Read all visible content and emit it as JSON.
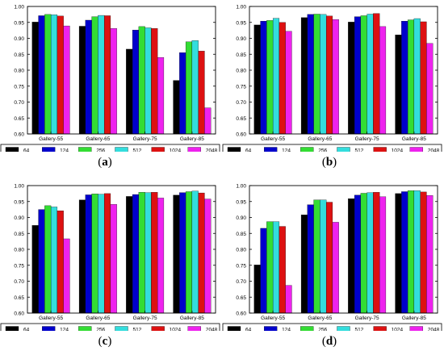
{
  "chart_data": [
    {
      "type": "bar",
      "label": "a",
      "categories": [
        "Gallery-55",
        "Gallery-65",
        "Gallery-75",
        "Gallery-85"
      ],
      "ylim": [
        0.6,
        1.0
      ],
      "yticks": [
        "0.60",
        "0.65",
        "0.70",
        "0.75",
        "0.80",
        "0.85",
        "0.90",
        "0.95",
        "1.00"
      ],
      "legend_position": "bottom",
      "series": [
        {
          "name": "64",
          "color": "#000000",
          "values": [
            0.951,
            0.938,
            0.866,
            0.768
          ]
        },
        {
          "name": "124",
          "color": "#0000cc",
          "values": [
            0.971,
            0.957,
            0.926,
            0.855
          ]
        },
        {
          "name": "256",
          "color": "#33dd33",
          "values": [
            0.975,
            0.968,
            0.937,
            0.889
          ]
        },
        {
          "name": "512",
          "color": "#33dddd",
          "values": [
            0.974,
            0.972,
            0.933,
            0.893
          ]
        },
        {
          "name": "1024",
          "color": "#dd1111",
          "values": [
            0.97,
            0.971,
            0.931,
            0.86
          ]
        },
        {
          "name": "2048",
          "color": "#ee22ee",
          "values": [
            0.939,
            0.931,
            0.84,
            0.682
          ]
        }
      ]
    },
    {
      "type": "bar",
      "label": "b",
      "categories": [
        "Gallery-55",
        "Gallery-65",
        "Gallery-75",
        "Gallery-85"
      ],
      "ylim": [
        0.6,
        1.0
      ],
      "yticks": [
        "0.60",
        "0.65",
        "0.70",
        "0.75",
        "0.80",
        "0.85",
        "0.90",
        "0.95",
        "1.00"
      ],
      "legend_position": "bottom",
      "series": [
        {
          "name": "64",
          "color": "#000000",
          "values": [
            0.942,
            0.965,
            0.951,
            0.911
          ]
        },
        {
          "name": "124",
          "color": "#0000cc",
          "values": [
            0.954,
            0.975,
            0.968,
            0.954
          ]
        },
        {
          "name": "256",
          "color": "#33dd33",
          "values": [
            0.956,
            0.976,
            0.971,
            0.958
          ]
        },
        {
          "name": "512",
          "color": "#33dddd",
          "values": [
            0.963,
            0.975,
            0.976,
            0.962
          ]
        },
        {
          "name": "1024",
          "color": "#dd1111",
          "values": [
            0.95,
            0.97,
            0.978,
            0.952
          ]
        },
        {
          "name": "2048",
          "color": "#ee22ee",
          "values": [
            0.922,
            0.959,
            0.937,
            0.884
          ]
        }
      ]
    },
    {
      "type": "bar",
      "label": "c",
      "categories": [
        "Gallery-55",
        "Gallery-65",
        "Gallery-75",
        "Gallery-85"
      ],
      "ylim": [
        0.6,
        1.0
      ],
      "yticks": [
        "0.60",
        "0.65",
        "0.70",
        "0.75",
        "0.80",
        "0.85",
        "0.90",
        "0.95",
        "1.00"
      ],
      "legend_position": "bottom",
      "series": [
        {
          "name": "64",
          "color": "#000000",
          "values": [
            0.875,
            0.955,
            0.966,
            0.97
          ]
        },
        {
          "name": "124",
          "color": "#0000cc",
          "values": [
            0.925,
            0.971,
            0.972,
            0.978
          ]
        },
        {
          "name": "256",
          "color": "#33dd33",
          "values": [
            0.937,
            0.974,
            0.979,
            0.981
          ]
        },
        {
          "name": "512",
          "color": "#33dddd",
          "values": [
            0.933,
            0.973,
            0.978,
            0.983
          ]
        },
        {
          "name": "1024",
          "color": "#dd1111",
          "values": [
            0.921,
            0.975,
            0.979,
            0.977
          ]
        },
        {
          "name": "2048",
          "color": "#ee22ee",
          "values": [
            0.833,
            0.941,
            0.961,
            0.958
          ]
        }
      ]
    },
    {
      "type": "bar",
      "label": "d",
      "categories": [
        "Gallery-55",
        "Gallery-65",
        "Gallery-75",
        "Gallery-85"
      ],
      "ylim": [
        0.6,
        1.0
      ],
      "yticks": [
        "0.60",
        "0.65",
        "0.70",
        "0.75",
        "0.80",
        "0.85",
        "0.90",
        "0.95",
        "1.00"
      ],
      "legend_position": "bottom",
      "series": [
        {
          "name": "64",
          "color": "#000000",
          "values": [
            0.751,
            0.908,
            0.959,
            0.975
          ]
        },
        {
          "name": "124",
          "color": "#0000cc",
          "values": [
            0.866,
            0.94,
            0.97,
            0.981
          ]
        },
        {
          "name": "256",
          "color": "#33dd33",
          "values": [
            0.887,
            0.955,
            0.976,
            0.984
          ]
        },
        {
          "name": "512",
          "color": "#33dddd",
          "values": [
            0.887,
            0.955,
            0.978,
            0.984
          ]
        },
        {
          "name": "1024",
          "color": "#dd1111",
          "values": [
            0.872,
            0.948,
            0.979,
            0.98
          ]
        },
        {
          "name": "2048",
          "color": "#ee22ee",
          "values": [
            0.687,
            0.885,
            0.965,
            0.969
          ]
        }
      ]
    }
  ]
}
